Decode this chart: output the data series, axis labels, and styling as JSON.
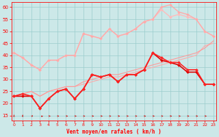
{
  "xlabel": "Vent moyen/en rafales ( km/h )",
  "bg_color": "#cce8e8",
  "grid_color": "#99cccc",
  "x": [
    0,
    1,
    2,
    3,
    4,
    5,
    6,
    7,
    8,
    9,
    10,
    11,
    12,
    13,
    14,
    15,
    16,
    17,
    18,
    19,
    20,
    21,
    22,
    23
  ],
  "series": [
    {
      "y": [
        41,
        39,
        36,
        34,
        38,
        38,
        40,
        40,
        49,
        48,
        47,
        51,
        48,
        49,
        51,
        54,
        55,
        59,
        56,
        57,
        56,
        55,
        50,
        48
      ],
      "color": "#ffbbbb",
      "lw": 1.0,
      "marker": "D",
      "ms": 2.0
    },
    {
      "y": [
        41,
        39,
        36,
        34,
        38,
        38,
        40,
        40,
        49,
        48,
        47,
        51,
        48,
        49,
        51,
        54,
        55,
        60,
        61,
        58,
        57,
        55,
        50,
        48
      ],
      "color": "#ffaaaa",
      "lw": 1.0,
      "marker": "D",
      "ms": 2.0
    },
    {
      "y": [
        23,
        24,
        25,
        23,
        25,
        26,
        27,
        27,
        28,
        29,
        30,
        31,
        31,
        32,
        33,
        34,
        35,
        36,
        37,
        38,
        39,
        40,
        44,
        45
      ],
      "color": "#ffaaaa",
      "lw": 0.8,
      "marker": null,
      "ms": 0
    },
    {
      "y": [
        23,
        24,
        25,
        23,
        25,
        26,
        27,
        27,
        29,
        30,
        31,
        32,
        32,
        33,
        34,
        35,
        36,
        37,
        38,
        39,
        40,
        41,
        43,
        46
      ],
      "color": "#ff9999",
      "lw": 0.8,
      "marker": null,
      "ms": 0
    },
    {
      "y": [
        23,
        23,
        23,
        18,
        22,
        25,
        26,
        22,
        26,
        32,
        31,
        32,
        29,
        32,
        32,
        34,
        41,
        38,
        37,
        36,
        33,
        33,
        28,
        28
      ],
      "color": "#dd0000",
      "lw": 1.2,
      "marker": "D",
      "ms": 2.2
    },
    {
      "y": [
        23,
        24,
        23,
        18,
        22,
        25,
        26,
        22,
        26,
        32,
        31,
        32,
        29,
        32,
        32,
        34,
        41,
        39,
        37,
        37,
        34,
        34,
        28,
        28
      ],
      "color": "#ff2222",
      "lw": 1.2,
      "marker": "D",
      "ms": 2.2
    }
  ],
  "ylim": [
    13,
    62
  ],
  "xlim": [
    -0.3,
    23.3
  ],
  "yticks": [
    15,
    20,
    25,
    30,
    35,
    40,
    45,
    50,
    55,
    60
  ],
  "xticks": [
    0,
    1,
    2,
    3,
    4,
    5,
    6,
    7,
    8,
    9,
    10,
    11,
    12,
    13,
    14,
    15,
    16,
    17,
    18,
    19,
    20,
    21,
    22,
    23
  ]
}
